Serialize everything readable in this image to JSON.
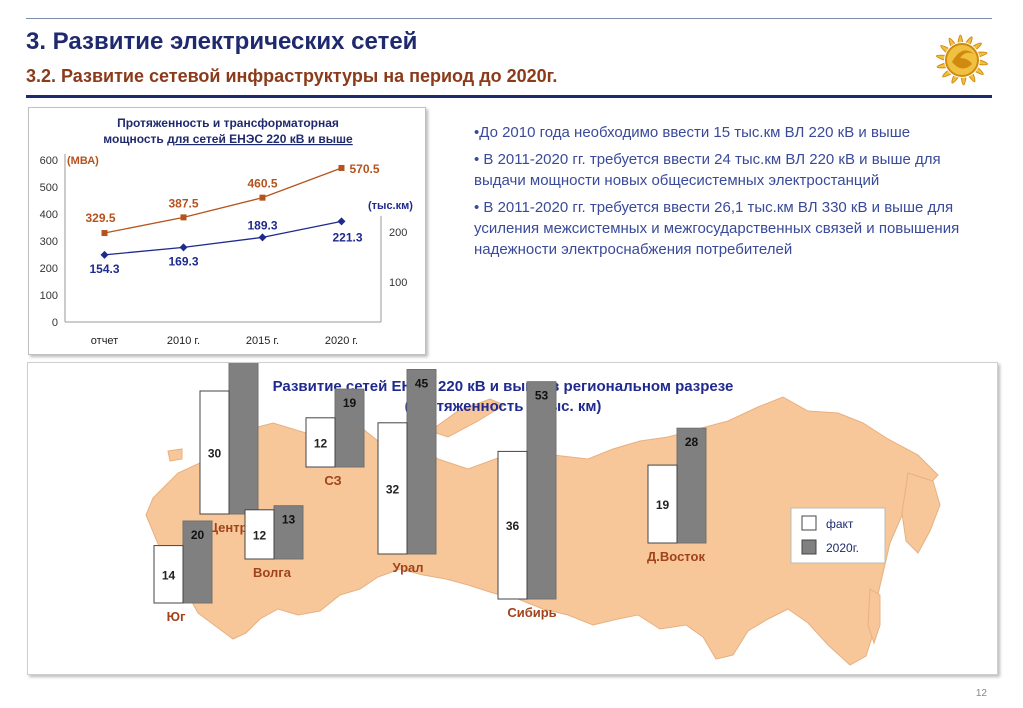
{
  "header": {
    "title": "3. Развитие электрических сетей",
    "subtitle": "3.2. Развитие сетевой инфраструктуры на период до 2020г.",
    "logo_icon": "sun-logo-icon"
  },
  "bullets": [
    "•До 2010 года необходимо ввести 15 тыс.км ВЛ 220 кВ и выше",
    "• В 2011-2020 гг. требуется ввести 24 тыс.км ВЛ 220 кВ и выше для выдачи мощности новых общесистемных электростанций",
    "• В 2011-2020 гг. требуется ввести 26,1 тыс.км ВЛ 330 кВ и выше для усиления межсистемных и межгосударственных связей  и повышения надежности электроснабжения потребителей"
  ],
  "chart_data": [
    {
      "type": "line",
      "title_line1": "Протяженность и трансформаторная",
      "title_line2_plain": "мощность ",
      "title_line2_underlined": "для сетей ЕНЭС 220 кВ и выше",
      "categories": [
        "отчет",
        "2010 г.",
        "2015 г.",
        "2020 г."
      ],
      "left_axis": {
        "unit": "(МВА)",
        "ylim": [
          0,
          600
        ],
        "ticks": [
          0,
          100,
          200,
          300,
          400,
          500,
          600
        ]
      },
      "right_axis": {
        "unit": "(тыс.км)",
        "ticks": [
          100,
          200
        ]
      },
      "series": [
        {
          "axis": "left",
          "color": "#b5531e",
          "marker": "square",
          "values": [
            329.5,
            387.5,
            460.5,
            570.5
          ],
          "labels": [
            "329.5",
            "387.5",
            "460.5",
            "570.5"
          ]
        },
        {
          "axis": "right",
          "color": "#1f2a8e",
          "marker": "diamond",
          "values": [
            154.3,
            169.3,
            189.3,
            221.3
          ],
          "labels": [
            "154.3",
            "169.3",
            "189.3",
            "221.3"
          ]
        }
      ]
    },
    {
      "type": "bar",
      "title_line1": "Развитие сетей ЕНЭС 220 кВ и выше в региональном разрезе",
      "title_line2": "(протяженность в тыс. км)",
      "legend": [
        {
          "name": "факт",
          "color": "#ffffff"
        },
        {
          "name": "2020г.",
          "color": "#808080"
        }
      ],
      "regions": [
        {
          "name": "Центр",
          "fact": 30,
          "target": 44
        },
        {
          "name": "СЗ",
          "fact": 12,
          "target": 19
        },
        {
          "name": "Волга",
          "fact": 12,
          "target": 13
        },
        {
          "name": "Юг",
          "fact": 14,
          "target": 20
        },
        {
          "name": "Урал",
          "fact": 32,
          "target": 45
        },
        {
          "name": "Сибирь",
          "fact": 36,
          "target": 53
        },
        {
          "name": "Д.Восток",
          "fact": 19,
          "target": 28
        }
      ]
    }
  ],
  "page_number": "12"
}
